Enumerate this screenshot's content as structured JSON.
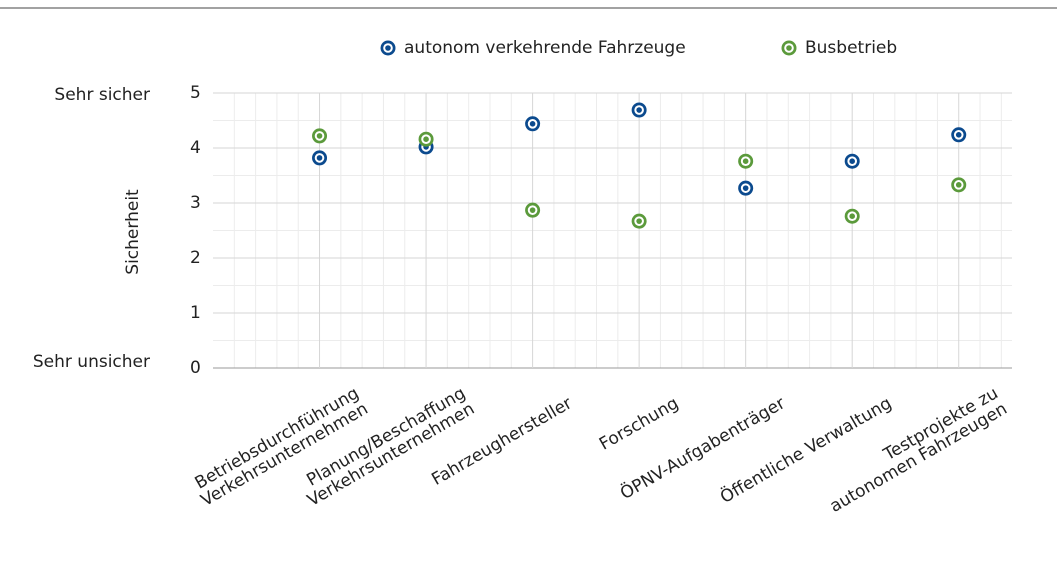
{
  "chart_data": {
    "type": "dot",
    "y_axis_label": "Sicherheit",
    "y_end_labels": {
      "top": "Sehr sicher",
      "bottom": "Sehr unsicher"
    },
    "categories": [
      [
        "Betriebsdurchführung",
        "Verkehrsunternehmen"
      ],
      [
        "Planung/Beschaffung",
        "Verkehrsunternehmen"
      ],
      [
        "Fahrzeughersteller"
      ],
      [
        "Forschung"
      ],
      [
        "ÖPNV-Aufgabenträger"
      ],
      [
        "Öffentliche Verwaltung"
      ],
      [
        "Testprojekte zu",
        "autonomen Fahrzeugen"
      ]
    ],
    "series": [
      {
        "name": "autonom verkehrende Fahrzeuge",
        "color": "#0b4a8e",
        "values": [
          3.82,
          4.02,
          4.44,
          4.69,
          3.27,
          3.76,
          4.24
        ]
      },
      {
        "name": "Busbetrieb",
        "color": "#5b9a3b",
        "values": [
          4.22,
          4.16,
          2.87,
          2.67,
          3.76,
          2.76,
          3.33
        ]
      }
    ],
    "ylim": [
      0,
      5
    ],
    "yticks": [
      0,
      1,
      2,
      3,
      4,
      5
    ],
    "grid": true
  }
}
